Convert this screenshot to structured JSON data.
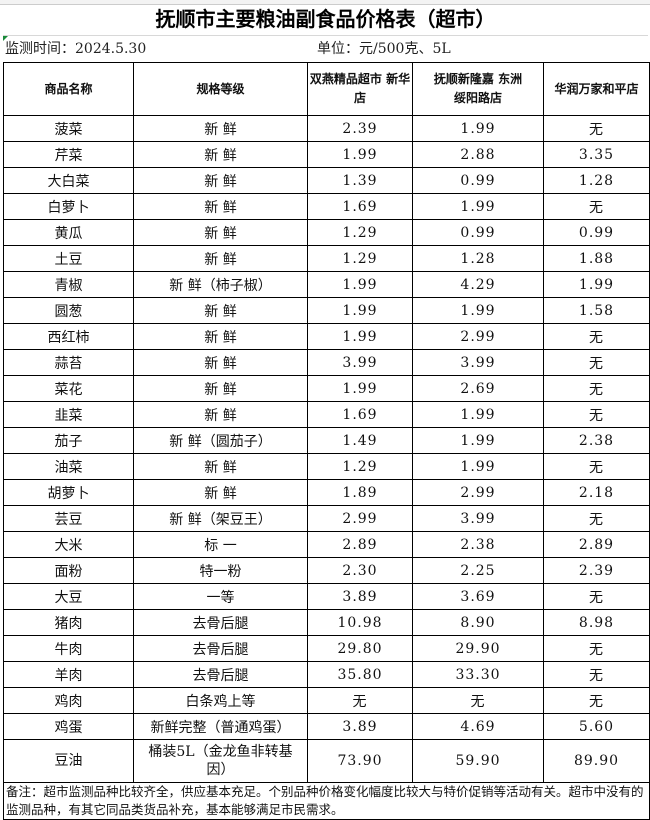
{
  "title": "抚顺市主要粮油副食品价格表（超市）",
  "date_label": "监测时间：2024.5.30",
  "unit_label": "单位：元/500克、5L",
  "headers": [
    "商品名称",
    "规格等级",
    "双燕精品超市 新华店",
    "抚顺新隆嘉 东洲绥阳路店",
    "华润万家和平店"
  ],
  "rows": [
    [
      "菠菜",
      "新 鲜",
      "2.39",
      "1.99",
      "无"
    ],
    [
      "芹菜",
      "新 鲜",
      "1.99",
      "2.88",
      "3.35"
    ],
    [
      "大白菜",
      "新 鲜",
      "1.39",
      "0.99",
      "1.28"
    ],
    [
      "白萝卜",
      "新 鲜",
      "1.69",
      "1.99",
      "无"
    ],
    [
      "黄瓜",
      "新 鲜",
      "1.29",
      "0.99",
      "0.99"
    ],
    [
      "土豆",
      "新 鲜",
      "1.29",
      "1.28",
      "1.88"
    ],
    [
      "青椒",
      "新 鲜（柿子椒）",
      "1.99",
      "4.29",
      "1.99"
    ],
    [
      "圆葱",
      "新 鲜",
      "1.99",
      "1.99",
      "1.58"
    ],
    [
      "西红柿",
      "新 鲜",
      "1.99",
      "2.99",
      "无"
    ],
    [
      "蒜苔",
      "新 鲜",
      "3.99",
      "3.99",
      "无"
    ],
    [
      "菜花",
      "新 鲜",
      "1.99",
      "2.69",
      "无"
    ],
    [
      "韭菜",
      "新 鲜",
      "1.69",
      "1.99",
      "无"
    ],
    [
      "茄子",
      "新 鲜（圆茄子）",
      "1.49",
      "1.99",
      "2.38"
    ],
    [
      "油菜",
      "新 鲜",
      "1.29",
      "1.99",
      "无"
    ],
    [
      "胡萝卜",
      "新 鲜",
      "1.89",
      "2.99",
      "2.18"
    ],
    [
      "芸豆",
      "新 鲜（架豆王）",
      "2.99",
      "3.99",
      "无"
    ],
    [
      "大米",
      "标 一",
      "2.89",
      "2.38",
      "2.89"
    ],
    [
      "面粉",
      "特一粉",
      "2.30",
      "2.25",
      "2.39"
    ],
    [
      "大豆",
      "一等",
      "3.89",
      "3.69",
      "无"
    ],
    [
      "猪肉",
      "去骨后腿",
      "10.98",
      "8.90",
      "8.98"
    ],
    [
      "牛肉",
      "去骨后腿",
      "29.80",
      "29.90",
      "无"
    ],
    [
      "羊肉",
      "去骨后腿",
      "35.80",
      "33.30",
      "无"
    ],
    [
      "鸡肉",
      "白条鸡上等",
      "无",
      "无",
      "无"
    ],
    [
      "鸡蛋",
      "新鲜完整（普通鸡蛋）",
      "3.89",
      "4.69",
      "5.60"
    ],
    [
      "豆油",
      "桶装5L（金龙鱼非转基因）",
      "73.90",
      "59.90",
      "89.90"
    ]
  ],
  "note": "备注：超市监测品种比较齐全，供应基本充足。个别品种价格变化幅度比较大与特价促销等活动有关。超市中没有的监测品种，有其它同品类货品补充，基本能够满足市民需求。"
}
